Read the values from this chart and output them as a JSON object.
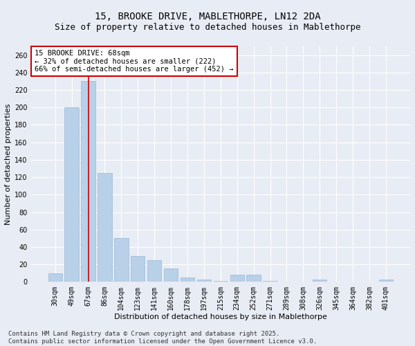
{
  "title": "15, BROOKE DRIVE, MABLETHORPE, LN12 2DA",
  "subtitle": "Size of property relative to detached houses in Mablethorpe",
  "xlabel": "Distribution of detached houses by size in Mablethorpe",
  "ylabel": "Number of detached properties",
  "categories": [
    "30sqm",
    "49sqm",
    "67sqm",
    "86sqm",
    "104sqm",
    "123sqm",
    "141sqm",
    "160sqm",
    "178sqm",
    "197sqm",
    "215sqm",
    "234sqm",
    "252sqm",
    "271sqm",
    "289sqm",
    "308sqm",
    "326sqm",
    "345sqm",
    "364sqm",
    "382sqm",
    "401sqm"
  ],
  "values": [
    10,
    200,
    230,
    125,
    50,
    30,
    25,
    15,
    5,
    3,
    1,
    8,
    8,
    1,
    0,
    0,
    3,
    0,
    0,
    0,
    3
  ],
  "bar_color": "#b8d0e8",
  "bar_edge_color": "#9ab8d8",
  "marker_index": 2,
  "marker_color": "#cc0000",
  "ylim": [
    0,
    270
  ],
  "yticks": [
    0,
    20,
    40,
    60,
    80,
    100,
    120,
    140,
    160,
    180,
    200,
    220,
    240,
    260
  ],
  "annotation_title": "15 BROOKE DRIVE: 68sqm",
  "annotation_line1": "← 32% of detached houses are smaller (222)",
  "annotation_line2": "66% of semi-detached houses are larger (452) →",
  "footnote1": "Contains HM Land Registry data © Crown copyright and database right 2025.",
  "footnote2": "Contains public sector information licensed under the Open Government Licence v3.0.",
  "background_color": "#e8ecf4",
  "plot_bg_color": "#e8ecf4",
  "grid_color": "#ffffff",
  "title_fontsize": 10,
  "subtitle_fontsize": 9,
  "axis_label_fontsize": 8,
  "tick_fontsize": 7,
  "annotation_fontsize": 7.5,
  "footnote_fontsize": 6.5
}
